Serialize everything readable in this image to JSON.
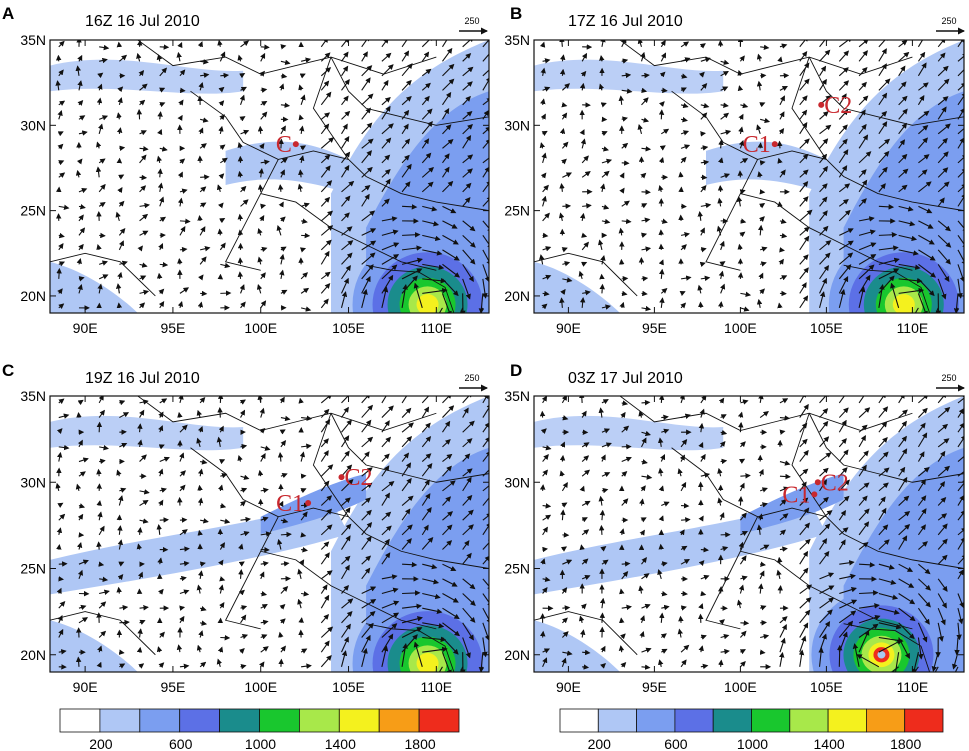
{
  "figure": {
    "reference_vector": {
      "value": "250"
    },
    "colorbar": {
      "colors": [
        "#ffffff",
        "#afc7f5",
        "#7b9ef0",
        "#5c70e6",
        "#1a8c8c",
        "#19c72e",
        "#a8e84a",
        "#f4f11e",
        "#f79d17",
        "#ee2c1c"
      ],
      "labels": [
        "200",
        "600",
        "1000",
        "1400",
        "1800"
      ],
      "label_after_box": [
        1,
        3,
        5,
        7,
        9
      ]
    },
    "axes": {
      "x_ticks": [
        90,
        95,
        100,
        105,
        110
      ],
      "x_tick_labels": [
        "90E",
        "95E",
        "100E",
        "105E",
        "110E"
      ],
      "y_ticks": [
        20,
        25,
        30,
        35
      ],
      "y_tick_labels": [
        "20N",
        "25N",
        "30N",
        "35N"
      ],
      "lon_range": [
        88,
        113
      ],
      "lat_range": [
        19,
        35
      ]
    },
    "panels": [
      {
        "letter": "A",
        "title": "16Z 16 Jul 2010",
        "centers": [
          {
            "label": "C",
            "lon": 102.0,
            "lat": 28.9
          }
        ]
      },
      {
        "letter": "B",
        "title": "17Z 16 Jul 2010",
        "centers": [
          {
            "label": "C1",
            "lon": 102.0,
            "lat": 28.9
          },
          {
            "label": "C2",
            "lon": 104.7,
            "lat": 31.2
          }
        ]
      },
      {
        "letter": "C",
        "title": "19Z 16 Jul 2010",
        "centers": [
          {
            "label": "C1",
            "lon": 102.7,
            "lat": 28.8
          },
          {
            "label": "C2",
            "lon": 104.6,
            "lat": 30.3
          }
        ]
      },
      {
        "letter": "D",
        "title": "03Z 17 Jul 2010",
        "centers": [
          {
            "label": "C1",
            "lon": 104.3,
            "lat": 29.3
          },
          {
            "label": "C2",
            "lon": 104.5,
            "lat": 30.0
          }
        ]
      }
    ]
  }
}
